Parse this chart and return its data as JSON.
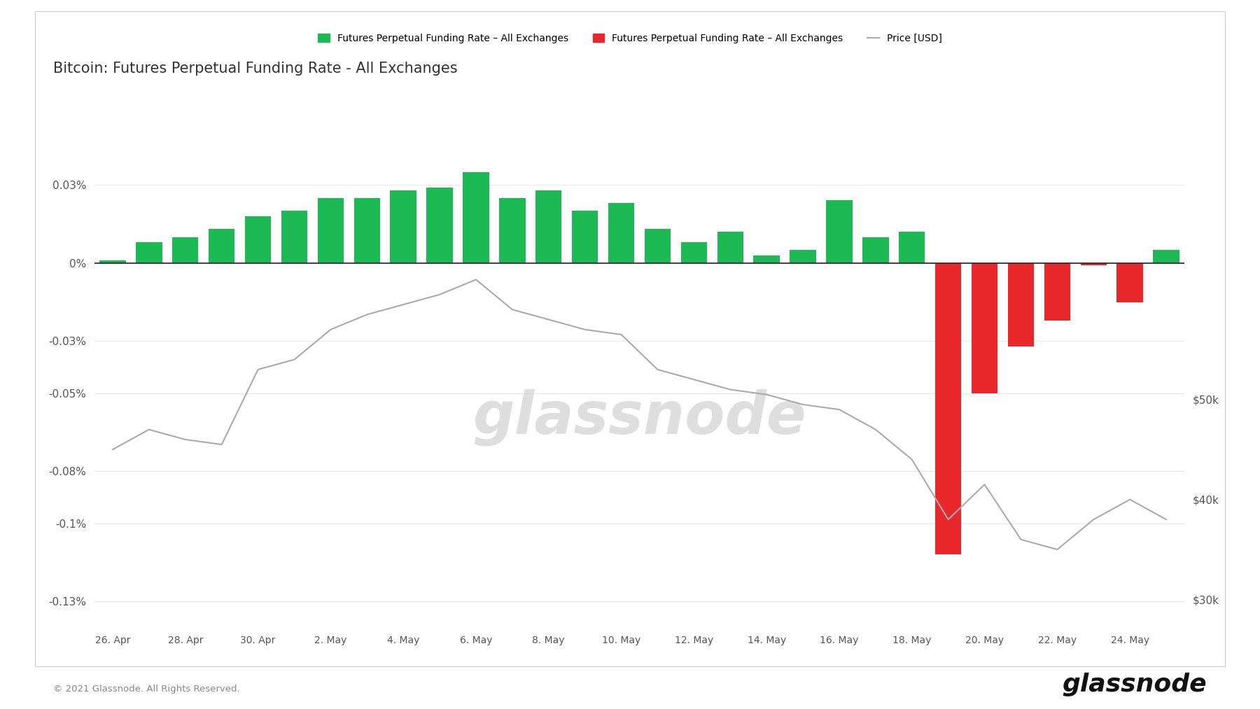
{
  "title": "Bitcoin: Futures Perpetual Funding Rate - All Exchanges",
  "background_color": "#ffffff",
  "legend_green_label": "Futures Perpetual Funding Rate – All Exchanges",
  "legend_red_label": "Futures Perpetual Funding Rate – All Exchanges",
  "legend_price_label": "Price [USD]",
  "x_labels": [
    "26. Apr",
    "28. Apr",
    "30. Apr",
    "2. May",
    "4. May",
    "6. May",
    "8. May",
    "10. May",
    "12. May",
    "14. May",
    "16. May",
    "18. May",
    "20. May",
    "22. May",
    "24. May"
  ],
  "tick_positions": [
    0,
    2,
    4,
    6,
    8,
    10,
    12,
    14,
    16,
    18,
    20,
    22,
    24,
    26,
    28
  ],
  "bar_values": [
    0.001,
    0.008,
    0.01,
    0.013,
    0.018,
    0.02,
    0.025,
    0.025,
    0.028,
    0.029,
    0.035,
    0.025,
    0.028,
    0.02,
    0.023,
    0.013,
    0.008,
    0.012,
    0.003,
    0.005,
    0.024,
    0.01,
    0.012,
    -0.112,
    -0.05,
    -0.032,
    -0.022,
    -0.001,
    -0.015,
    0.005
  ],
  "price_values": [
    45000,
    47000,
    46000,
    45500,
    53000,
    54000,
    57000,
    58500,
    59500,
    60500,
    62000,
    59000,
    58000,
    57000,
    56500,
    53000,
    52000,
    51000,
    50500,
    49500,
    49000,
    47000,
    44000,
    38000,
    41500,
    36000,
    35000,
    38000,
    40000,
    38000
  ],
  "ylim_left": [
    -0.14,
    0.052
  ],
  "ylim_right": [
    27200,
    77200
  ],
  "yticks_left": [
    0.03,
    0.0,
    -0.03,
    -0.05,
    -0.08,
    -0.1,
    -0.13
  ],
  "ytick_left_labels": [
    "0.03%",
    "0%",
    "-0.03%",
    "-0.05%",
    "-0.08%",
    "-0.1%",
    "-0.13%"
  ],
  "yticks_right": [
    50000,
    40000,
    30000
  ],
  "ytick_right_labels": [
    "$50k",
    "$40k",
    "$30k"
  ],
  "green_color": "#1db954",
  "red_color": "#e8272a",
  "price_color": "#aaaaaa",
  "watermark": "glassnode",
  "footer_text": "© 2021 Glassnode. All Rights Reserved.",
  "footer_logo": "glassnode"
}
